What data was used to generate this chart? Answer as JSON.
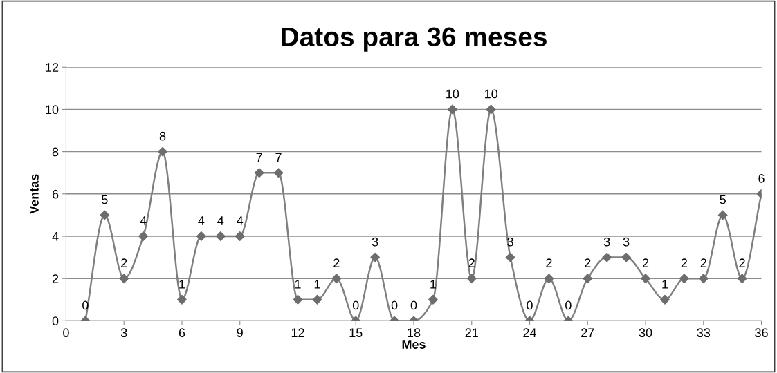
{
  "chart_data": {
    "type": "line",
    "title": "Datos para 36 meses",
    "xlabel": "Mes",
    "ylabel": "Ventas",
    "x": [
      1,
      2,
      3,
      4,
      5,
      6,
      7,
      8,
      9,
      10,
      11,
      12,
      13,
      14,
      15,
      16,
      17,
      18,
      19,
      20,
      21,
      22,
      23,
      24,
      25,
      26,
      27,
      28,
      29,
      30,
      31,
      32,
      33,
      34,
      35,
      36
    ],
    "series": [
      {
        "color": "#7f7f7f",
        "values": [
          0,
          5,
          2,
          4,
          8,
          1,
          4,
          4,
          4,
          7,
          7,
          1,
          1,
          2,
          0,
          3,
          0,
          0,
          1,
          10,
          2,
          10,
          3,
          0,
          2,
          0,
          2,
          3,
          3,
          2,
          1,
          2,
          2,
          5,
          2,
          6
        ]
      }
    ],
    "xlim": [
      0,
      36
    ],
    "xticks": [
      0,
      3,
      6,
      9,
      12,
      15,
      18,
      21,
      24,
      27,
      30,
      33,
      36
    ],
    "ylim": [
      0,
      12
    ],
    "yticks": [
      0,
      2,
      4,
      6,
      8,
      10,
      12
    ],
    "grid": "y",
    "marker": "diamond",
    "line_style": "solid",
    "data_labels": true
  }
}
